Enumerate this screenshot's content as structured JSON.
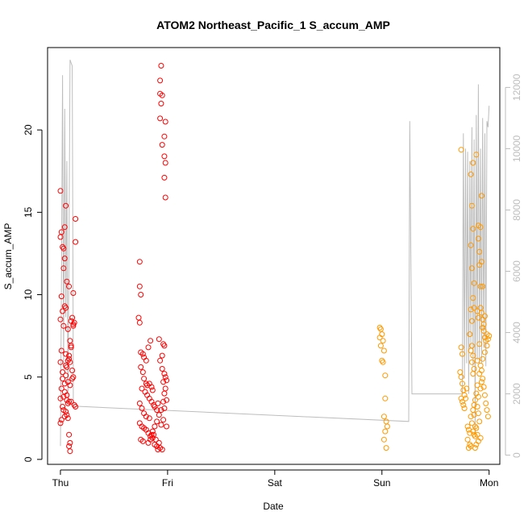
{
  "chart_data": {
    "type": "scatter",
    "title": "ATOM2 Northeast_Pacific_1 S_accum_AMP",
    "xlabel": "Date",
    "ylabel": "S_accum_AMP",
    "x_ticks": [
      "Thu",
      "Fri",
      "Sat",
      "Sun",
      "Mon"
    ],
    "xlim": [
      -0.12,
      4.1
    ],
    "ylim": [
      -0.3,
      25.0
    ],
    "y_ticks": [
      0,
      5,
      10,
      15,
      20
    ],
    "y2_ticks": [
      0,
      2000,
      4000,
      6000,
      8000,
      10000,
      12000
    ],
    "y2lim": [
      -300,
      13300
    ],
    "grid": false,
    "colors": {
      "red": "#ff0000",
      "orange": "#ff9900",
      "line": "#bdbdbd"
    },
    "series": [
      {
        "color": "#ff0000",
        "marker": "open-circle",
        "points": [
          [
            0.0,
            16.3
          ],
          [
            0.01,
            13.8
          ],
          [
            0.0,
            13.5
          ],
          [
            0.02,
            12.9
          ],
          [
            0.03,
            12.8
          ],
          [
            0.04,
            14.1
          ],
          [
            0.05,
            15.4
          ],
          [
            0.03,
            11.6
          ],
          [
            0.04,
            12.2
          ],
          [
            0.06,
            10.8
          ],
          [
            0.08,
            10.5
          ],
          [
            0.01,
            9.9
          ],
          [
            0.02,
            9.0
          ],
          [
            0.04,
            9.3
          ],
          [
            0.05,
            9.2
          ],
          [
            0.0,
            8.5
          ],
          [
            0.03,
            8.1
          ],
          [
            0.07,
            7.9
          ],
          [
            0.1,
            8.4
          ],
          [
            0.11,
            8.6
          ],
          [
            0.12,
            8.2
          ],
          [
            0.13,
            8.3
          ],
          [
            0.12,
            8.1
          ],
          [
            0.09,
            7.2
          ],
          [
            0.1,
            6.9
          ],
          [
            0.01,
            6.6
          ],
          [
            0.05,
            6.4
          ],
          [
            0.08,
            6.1
          ],
          [
            0.09,
            5.9
          ],
          [
            0.0,
            5.9
          ],
          [
            0.06,
            5.6
          ],
          [
            0.11,
            5.4
          ],
          [
            0.12,
            5.0
          ],
          [
            0.05,
            5.1
          ],
          [
            0.02,
            4.9
          ],
          [
            0.07,
            4.7
          ],
          [
            0.09,
            4.5
          ],
          [
            0.01,
            4.3
          ],
          [
            0.04,
            4.1
          ],
          [
            0.06,
            3.9
          ],
          [
            0.03,
            3.8
          ],
          [
            0.0,
            3.7
          ],
          [
            0.1,
            3.5
          ],
          [
            0.07,
            3.4
          ],
          [
            0.08,
            3.5
          ],
          [
            0.13,
            3.3
          ],
          [
            0.14,
            3.2
          ],
          [
            0.02,
            3.2
          ],
          [
            0.05,
            2.9
          ],
          [
            0.06,
            2.7
          ],
          [
            0.07,
            2.5
          ],
          [
            0.04,
            2.6
          ],
          [
            0.01,
            2.4
          ],
          [
            0.0,
            2.2
          ],
          [
            0.08,
            1.5
          ],
          [
            0.09,
            1.0
          ],
          [
            0.08,
            0.8
          ],
          [
            0.09,
            0.5
          ],
          [
            0.12,
            10.1
          ],
          [
            0.14,
            13.2
          ],
          [
            0.14,
            14.6
          ],
          [
            0.04,
            4.6
          ],
          [
            0.05,
            5.7
          ],
          [
            0.07,
            6.0
          ],
          [
            0.08,
            6.3
          ],
          [
            0.1,
            6.8
          ],
          [
            0.11,
            4.9
          ],
          [
            0.03,
            3.0
          ],
          [
            0.06,
            3.6
          ],
          [
            0.02,
            5.3
          ],
          [
            0.74,
            12.0
          ],
          [
            0.74,
            10.5
          ],
          [
            0.75,
            10.0
          ],
          [
            0.73,
            8.6
          ],
          [
            0.74,
            8.3
          ],
          [
            0.75,
            6.5
          ],
          [
            0.77,
            6.4
          ],
          [
            0.78,
            6.2
          ],
          [
            0.8,
            6.0
          ],
          [
            0.82,
            6.8
          ],
          [
            0.84,
            7.2
          ],
          [
            0.75,
            5.6
          ],
          [
            0.77,
            5.3
          ],
          [
            0.78,
            4.9
          ],
          [
            0.8,
            4.6
          ],
          [
            0.81,
            4.5
          ],
          [
            0.83,
            4.6
          ],
          [
            0.85,
            4.4
          ],
          [
            0.86,
            4.2
          ],
          [
            0.76,
            4.3
          ],
          [
            0.79,
            4.1
          ],
          [
            0.81,
            3.9
          ],
          [
            0.83,
            3.7
          ],
          [
            0.85,
            3.5
          ],
          [
            0.87,
            3.3
          ],
          [
            0.88,
            3.2
          ],
          [
            0.9,
            3.0
          ],
          [
            0.91,
            3.4
          ],
          [
            0.74,
            3.4
          ],
          [
            0.76,
            3.1
          ],
          [
            0.78,
            2.8
          ],
          [
            0.8,
            2.6
          ],
          [
            0.83,
            2.5
          ],
          [
            0.74,
            2.2
          ],
          [
            0.76,
            2.0
          ],
          [
            0.78,
            1.9
          ],
          [
            0.8,
            1.8
          ],
          [
            0.82,
            1.6
          ],
          [
            0.84,
            1.4
          ],
          [
            0.86,
            1.3
          ],
          [
            0.87,
            1.5
          ],
          [
            0.89,
            1.2
          ],
          [
            0.75,
            1.2
          ],
          [
            0.77,
            1.1
          ],
          [
            0.82,
            1.0
          ],
          [
            0.84,
            1.2
          ],
          [
            0.88,
            0.9
          ],
          [
            0.9,
            0.8
          ],
          [
            0.91,
            0.6
          ],
          [
            0.93,
            0.7
          ],
          [
            0.95,
            0.6
          ],
          [
            0.85,
            1.5
          ],
          [
            0.86,
            1.7
          ],
          [
            0.88,
            2.0
          ],
          [
            0.9,
            2.3
          ],
          [
            0.92,
            2.7
          ],
          [
            0.94,
            3.0
          ],
          [
            0.96,
            3.5
          ],
          [
            0.97,
            4.0
          ],
          [
            0.98,
            4.3
          ],
          [
            0.99,
            4.8
          ],
          [
            0.97,
            5.2
          ],
          [
            0.95,
            5.5
          ],
          [
            0.93,
            6.0
          ],
          [
            0.95,
            6.3
          ],
          [
            0.97,
            6.9
          ],
          [
            0.92,
            7.3
          ],
          [
            0.96,
            7.0
          ],
          [
            0.98,
            15.9
          ],
          [
            0.97,
            17.1
          ],
          [
            0.98,
            18.0
          ],
          [
            0.97,
            18.4
          ],
          [
            0.95,
            19.1
          ],
          [
            0.97,
            19.6
          ],
          [
            0.98,
            20.5
          ],
          [
            0.93,
            20.7
          ],
          [
            0.94,
            21.6
          ],
          [
            0.93,
            22.2
          ],
          [
            0.95,
            22.1
          ],
          [
            0.93,
            23.0
          ],
          [
            0.94,
            23.9
          ],
          [
            0.99,
            2.0
          ],
          [
            0.92,
            1.0
          ],
          [
            0.94,
            2.1
          ],
          [
            0.96,
            2.4
          ],
          [
            0.97,
            3.1
          ],
          [
            0.99,
            3.6
          ],
          [
            0.98,
            5.0
          ],
          [
            0.96,
            4.7
          ]
        ]
      },
      {
        "color": "#ff9900",
        "marker": "open-circle",
        "points": [
          [
            2.98,
            8.0
          ],
          [
            2.99,
            7.9
          ],
          [
            3.0,
            7.6
          ],
          [
            2.98,
            7.4
          ],
          [
            3.01,
            7.2
          ],
          [
            2.99,
            6.9
          ],
          [
            3.02,
            6.6
          ],
          [
            3.0,
            6.0
          ],
          [
            3.03,
            5.1
          ],
          [
            3.02,
            2.6
          ],
          [
            3.04,
            2.3
          ],
          [
            3.05,
            2.0
          ],
          [
            3.03,
            1.7
          ],
          [
            3.02,
            1.2
          ],
          [
            3.04,
            0.7
          ],
          [
            3.03,
            3.7
          ],
          [
            3.01,
            5.9
          ],
          [
            3.74,
            18.8
          ],
          [
            3.74,
            6.8
          ],
          [
            3.75,
            6.4
          ],
          [
            3.73,
            5.3
          ],
          [
            3.74,
            5.0
          ],
          [
            3.75,
            4.6
          ],
          [
            3.76,
            4.2
          ],
          [
            3.77,
            3.9
          ],
          [
            3.74,
            3.7
          ],
          [
            3.75,
            3.5
          ],
          [
            3.76,
            3.3
          ],
          [
            3.77,
            3.1
          ],
          [
            3.78,
            3.7
          ],
          [
            3.79,
            4.3
          ],
          [
            3.8,
            2.0
          ],
          [
            3.81,
            1.8
          ],
          [
            3.82,
            1.6
          ],
          [
            3.8,
            1.2
          ],
          [
            3.82,
            0.9
          ],
          [
            3.83,
            0.8
          ],
          [
            3.81,
            0.7
          ],
          [
            3.85,
            1.7
          ],
          [
            3.86,
            1.5
          ],
          [
            3.87,
            1.4
          ],
          [
            3.84,
            2.2
          ],
          [
            3.83,
            2.6
          ],
          [
            3.85,
            3.0
          ],
          [
            3.86,
            3.3
          ],
          [
            3.87,
            3.6
          ],
          [
            3.88,
            4.0
          ],
          [
            3.89,
            4.5
          ],
          [
            3.85,
            5.2
          ],
          [
            3.86,
            5.5
          ],
          [
            3.84,
            5.9
          ],
          [
            3.85,
            6.3
          ],
          [
            3.83,
            6.6
          ],
          [
            3.84,
            6.9
          ],
          [
            3.82,
            7.6
          ],
          [
            3.84,
            8.4
          ],
          [
            3.83,
            9.1
          ],
          [
            3.86,
            9.2
          ],
          [
            3.85,
            9.8
          ],
          [
            3.86,
            10.7
          ],
          [
            3.84,
            11.6
          ],
          [
            3.83,
            13.0
          ],
          [
            3.85,
            14.0
          ],
          [
            3.84,
            15.4
          ],
          [
            3.83,
            17.3
          ],
          [
            3.85,
            18.0
          ],
          [
            3.88,
            18.5
          ],
          [
            3.9,
            14.2
          ],
          [
            3.9,
            13.4
          ],
          [
            3.91,
            12.6
          ],
          [
            3.91,
            11.8
          ],
          [
            3.92,
            10.5
          ],
          [
            3.92,
            9.2
          ],
          [
            3.93,
            8.9
          ],
          [
            3.94,
            8.5
          ],
          [
            3.95,
            8.2
          ],
          [
            3.96,
            8.7
          ],
          [
            3.94,
            8.0
          ],
          [
            3.95,
            7.8
          ],
          [
            3.96,
            7.4
          ],
          [
            3.97,
            7.2
          ],
          [
            3.98,
            7.6
          ],
          [
            3.99,
            7.3
          ],
          [
            4.0,
            7.5
          ],
          [
            3.98,
            6.9
          ],
          [
            3.96,
            6.5
          ],
          [
            3.94,
            6.1
          ],
          [
            3.92,
            5.7
          ],
          [
            3.91,
            5.2
          ],
          [
            3.93,
            4.7
          ],
          [
            3.92,
            4.3
          ],
          [
            3.9,
            3.8
          ],
          [
            3.89,
            3.2
          ],
          [
            3.9,
            2.8
          ],
          [
            3.91,
            2.3
          ],
          [
            3.88,
            1.9
          ],
          [
            3.89,
            1.5
          ],
          [
            3.9,
            1.1
          ],
          [
            3.88,
            0.9
          ],
          [
            3.87,
            0.7
          ],
          [
            3.86,
            2.7
          ],
          [
            3.87,
            2.0
          ],
          [
            3.92,
            1.3
          ],
          [
            3.93,
            16.0
          ],
          [
            3.92,
            14.1
          ],
          [
            3.89,
            9.0
          ],
          [
            3.9,
            8.6
          ],
          [
            3.91,
            7.0
          ],
          [
            3.89,
            6.0
          ],
          [
            3.93,
            5.4
          ],
          [
            3.94,
            4.9
          ],
          [
            3.95,
            4.4
          ],
          [
            3.96,
            3.9
          ],
          [
            3.97,
            3.4
          ],
          [
            3.98,
            3.0
          ],
          [
            3.99,
            2.6
          ],
          [
            3.94,
            10.5
          ],
          [
            3.93,
            12.0
          ]
        ]
      }
    ],
    "line_series": {
      "axis": "right",
      "color": "#bdbdbd",
      "points": [
        [
          0.0,
          300
        ],
        [
          0.01,
          6000
        ],
        [
          0.02,
          12400
        ],
        [
          0.03,
          2800
        ],
        [
          0.04,
          11300
        ],
        [
          0.05,
          4500
        ],
        [
          0.06,
          9600
        ],
        [
          0.07,
          1700
        ],
        [
          0.08,
          6800
        ],
        [
          0.09,
          12900
        ],
        [
          0.1,
          12800
        ],
        [
          0.11,
          12700
        ],
        [
          0.12,
          2800
        ],
        [
          0.12,
          1600
        ],
        [
          3.25,
          1100
        ],
        [
          3.26,
          10900
        ],
        [
          3.28,
          2000
        ],
        [
          3.75,
          2000
        ],
        [
          3.76,
          10500
        ],
        [
          3.77,
          2500
        ],
        [
          3.78,
          10000
        ],
        [
          3.79,
          3000
        ],
        [
          3.8,
          9900
        ],
        [
          3.81,
          2000
        ],
        [
          3.82,
          9600
        ],
        [
          3.83,
          3500
        ],
        [
          3.84,
          10700
        ],
        [
          3.85,
          2900
        ],
        [
          3.86,
          10300
        ],
        [
          3.87,
          700
        ],
        [
          3.88,
          11100
        ],
        [
          3.89,
          3100
        ],
        [
          3.9,
          12100
        ],
        [
          3.91,
          3000
        ],
        [
          3.92,
          10000
        ],
        [
          3.93,
          3000
        ],
        [
          3.94,
          11000
        ],
        [
          3.95,
          3500
        ],
        [
          3.96,
          10500
        ],
        [
          3.97,
          2900
        ],
        [
          3.98,
          10900
        ],
        [
          3.99,
          10700
        ],
        [
          4.0,
          11400
        ]
      ]
    }
  }
}
